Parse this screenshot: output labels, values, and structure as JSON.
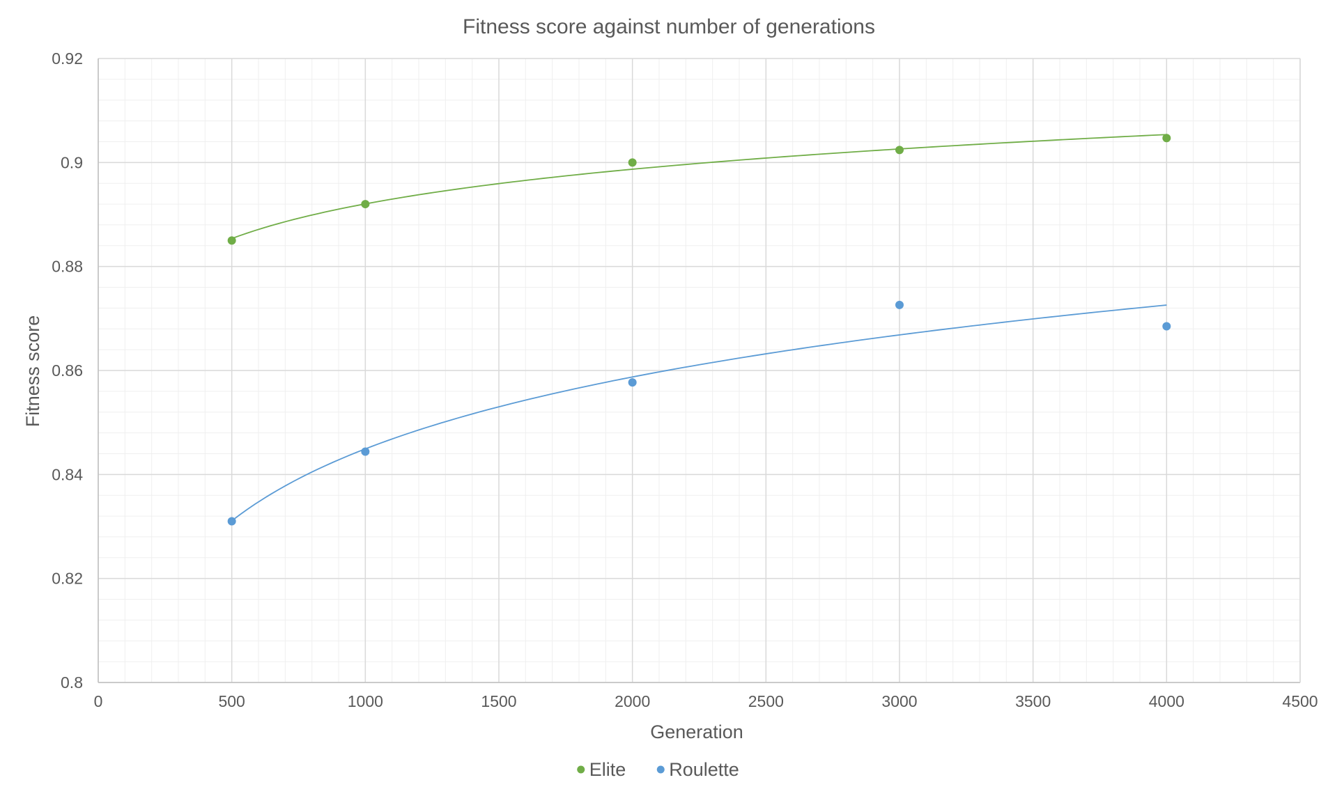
{
  "chart_data": {
    "type": "scatter",
    "title": "Fitness score against number of generations",
    "xlabel": "Generation",
    "ylabel": "Fitness score",
    "xlim": [
      0,
      4500
    ],
    "ylim": [
      0.8,
      0.92
    ],
    "x_ticks": [
      "0",
      "500",
      "1000",
      "1500",
      "2000",
      "2500",
      "3000",
      "3500",
      "4000",
      "4500"
    ],
    "y_ticks": [
      "0.8",
      "0.82",
      "0.84",
      "0.86",
      "0.88",
      "0.9",
      "0.92"
    ],
    "grid": true,
    "minor_grid": true,
    "trendline": "logarithmic",
    "legend_position": "bottom",
    "series": [
      {
        "name": "Elite",
        "color": "#70ad47",
        "x": [
          500,
          1000,
          2000,
          3000,
          4000
        ],
        "y": [
          0.885,
          0.892,
          0.9,
          0.9024,
          0.9047
        ]
      },
      {
        "name": "Roulette",
        "color": "#5b9bd5",
        "x": [
          500,
          1000,
          2000,
          3000,
          4000
        ],
        "y": [
          0.831,
          0.8444,
          0.8577,
          0.8726,
          0.8685
        ]
      }
    ]
  }
}
